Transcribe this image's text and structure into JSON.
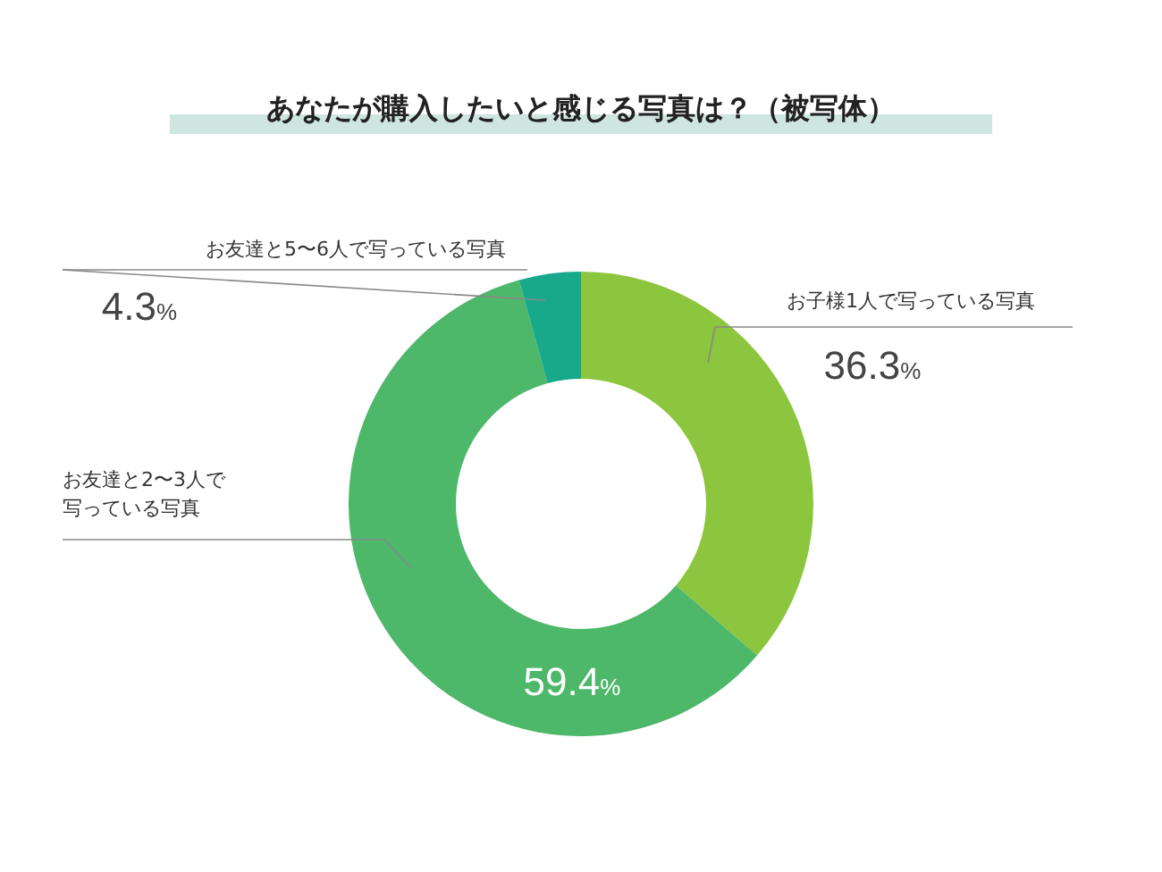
{
  "chart_data": {
    "type": "donut",
    "title": "あなたが購入したいと感じる写真は？（被写体）",
    "categories": [
      "お子様1人で写っている写真",
      "お友達と2〜3人で写っている写真",
      "お友達と5〜6人で写っている写真"
    ],
    "values": [
      36.3,
      59.4,
      4.3
    ],
    "colors": [
      "#8cc63e",
      "#4db76a",
      "#17a98a"
    ],
    "value_labels": [
      "36.3%",
      "59.4%",
      "4.3%"
    ]
  }
}
